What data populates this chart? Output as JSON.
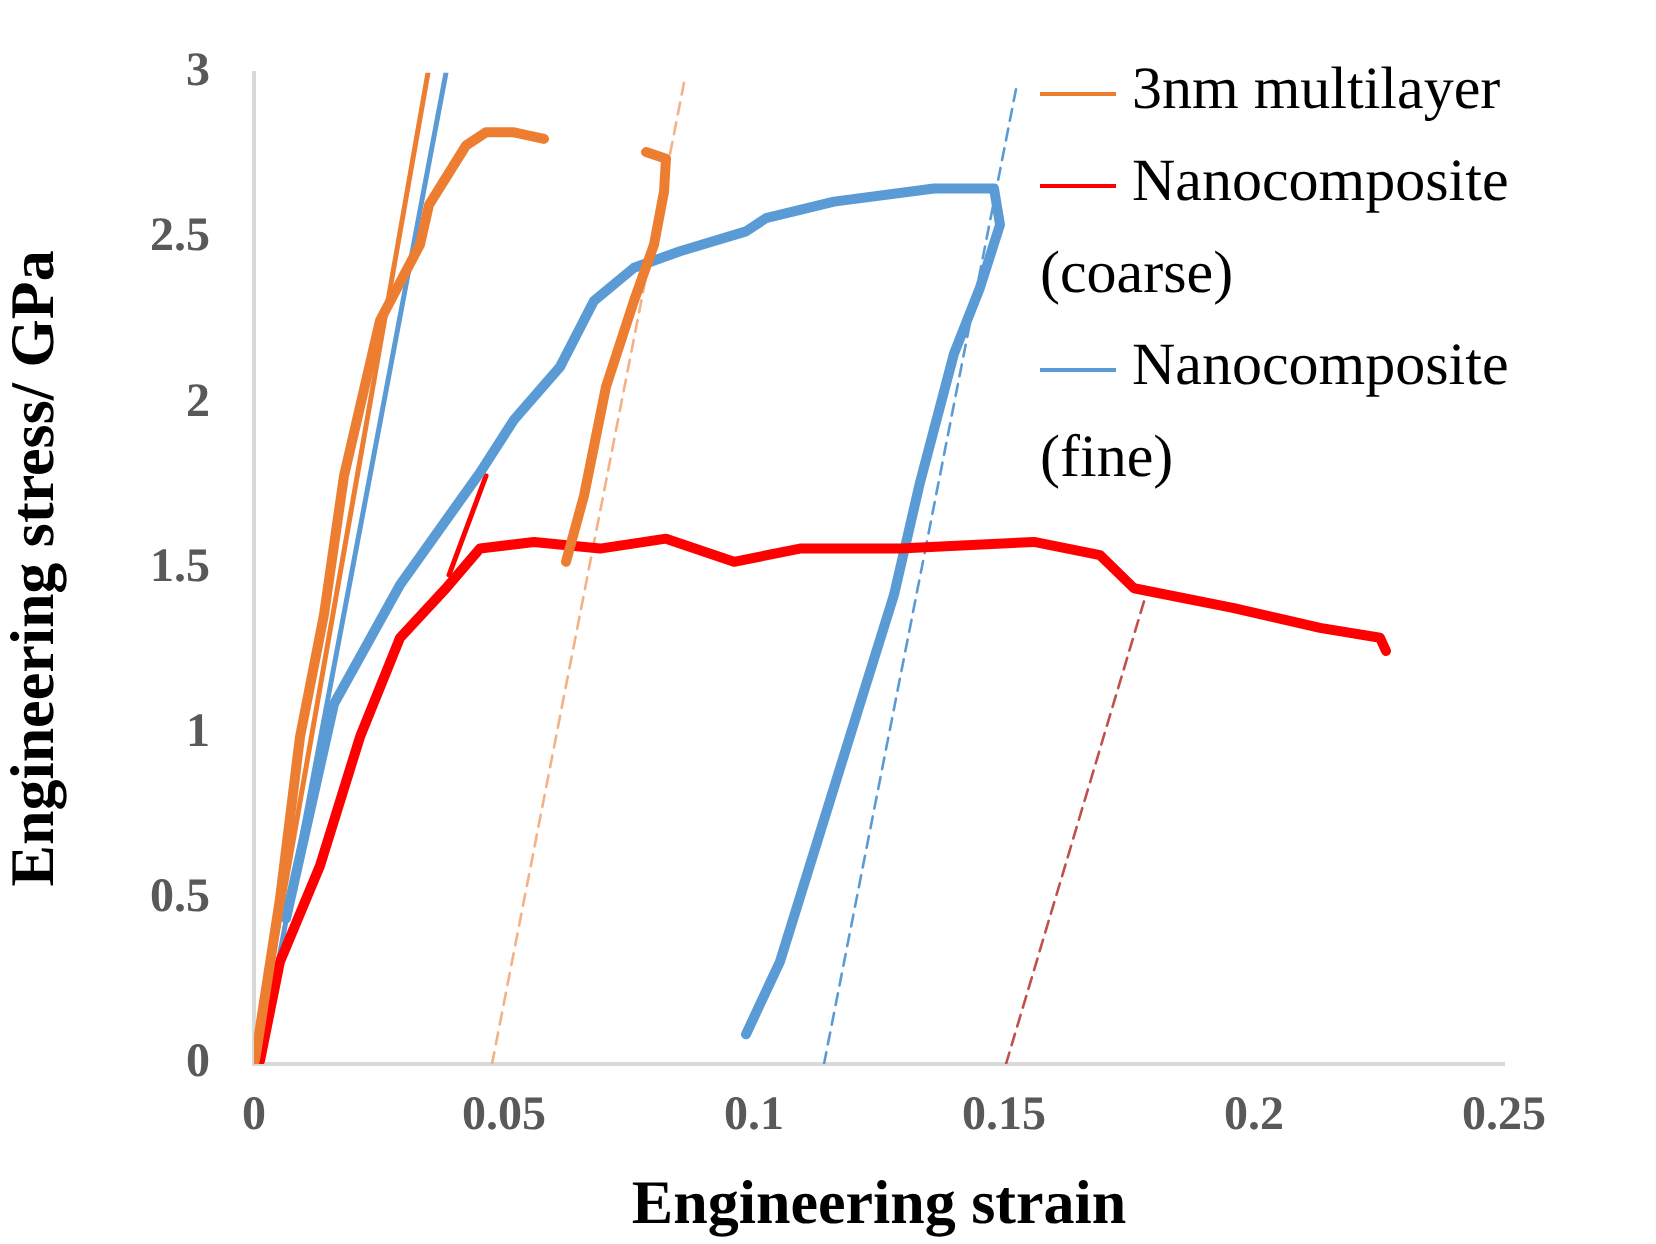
{
  "chart_data": {
    "type": "line",
    "xlabel": "Engineering strain",
    "ylabel": "Engineering stress/ GPa",
    "xlim": [
      0,
      0.25
    ],
    "xticks": [
      0,
      0.05,
      0.1,
      0.15,
      0.2,
      0.25
    ],
    "ylim": [
      0,
      3
    ],
    "yticks": [
      0,
      0.5,
      1,
      1.5,
      2,
      2.5,
      3
    ],
    "grid": false,
    "legend": "top right",
    "marker": "none",
    "series": [
      {
        "name": "3nm multilayer",
        "color": "#ed7d31",
        "x": [
          0,
          0.0004,
          0.0052,
          0.0092,
          0.014,
          0.018,
          0.0252,
          0.0332,
          0.035,
          0.0424,
          0.0464,
          0.052,
          0.058,
          null,
          0.0624,
          0.066,
          0.0704,
          0.076,
          0.08,
          0.082,
          0.0824,
          0.0784
        ],
        "values": [
          0,
          0.03,
          0.5,
          0.99,
          1.36,
          1.78,
          2.25,
          2.48,
          2.6,
          2.78,
          2.82,
          2.82,
          2.8,
          null,
          1.52,
          1.72,
          2.05,
          2.31,
          2.48,
          2.64,
          2.74,
          2.76
        ]
      },
      {
        "name": "Nanocomposite (coarse)",
        "color": "#ff0000",
        "x": [
          0.0012,
          0.0052,
          0.0132,
          0.0212,
          0.0292,
          0.0384,
          0.0452,
          0.056,
          0.0692,
          0.0824,
          0.096,
          0.1092,
          0.1292,
          0.156,
          0.1692,
          0.176,
          0.196,
          0.2132,
          0.2252,
          0.2264
        ],
        "values": [
          0.01,
          0.31,
          0.6,
          0.99,
          1.29,
          1.44,
          1.56,
          1.58,
          1.56,
          1.59,
          1.52,
          1.56,
          1.56,
          1.58,
          1.54,
          1.44,
          1.38,
          1.32,
          1.29,
          1.25
        ]
      },
      {
        "name": "Nanocomposite (fine)",
        "color": "#5b9bd5",
        "x": [
          0.0064,
          0.016,
          0.0292,
          0.0452,
          0.052,
          0.0612,
          0.068,
          0.076,
          0.0852,
          0.0984,
          0.1024,
          0.116,
          0.136,
          0.148,
          0.1492,
          0.1452,
          0.14,
          0.1332,
          0.128,
          0.1212,
          0.1132,
          0.1052,
          0.0984
        ],
        "values": [
          0.44,
          1.09,
          1.45,
          1.79,
          1.95,
          2.11,
          2.31,
          2.41,
          2.46,
          2.52,
          2.56,
          2.61,
          2.65,
          2.65,
          2.54,
          2.35,
          2.15,
          1.76,
          1.42,
          1.09,
          0.7,
          0.31,
          0.09
        ]
      },
      {
        "color": "#ed7d31",
        "x": [
          0,
          0.0348
        ],
        "values": [
          0,
          3
        ]
      },
      {
        "color": "#5b9bd5",
        "x": [
          0.001,
          0.0384
        ],
        "values": [
          0,
          3
        ]
      },
      {
        "color": "#ff0000",
        "x": [
          0.039,
          0.0464
        ],
        "values": [
          1.48,
          1.78
        ]
      },
      {
        "color": "#f4b183",
        "line_style": "dashed",
        "x": [
          0.0476,
          0.086
        ],
        "values": [
          0,
          2.97
        ]
      },
      {
        "color": "#5b9bd5",
        "line_style": "dashed",
        "x": [
          0.114,
          0.1524
        ],
        "values": [
          0,
          2.95
        ]
      },
      {
        "color": "#c0504d",
        "line_style": "dashed",
        "x": [
          0.1504,
          0.178
        ],
        "values": [
          0,
          1.4
        ]
      }
    ]
  }
}
